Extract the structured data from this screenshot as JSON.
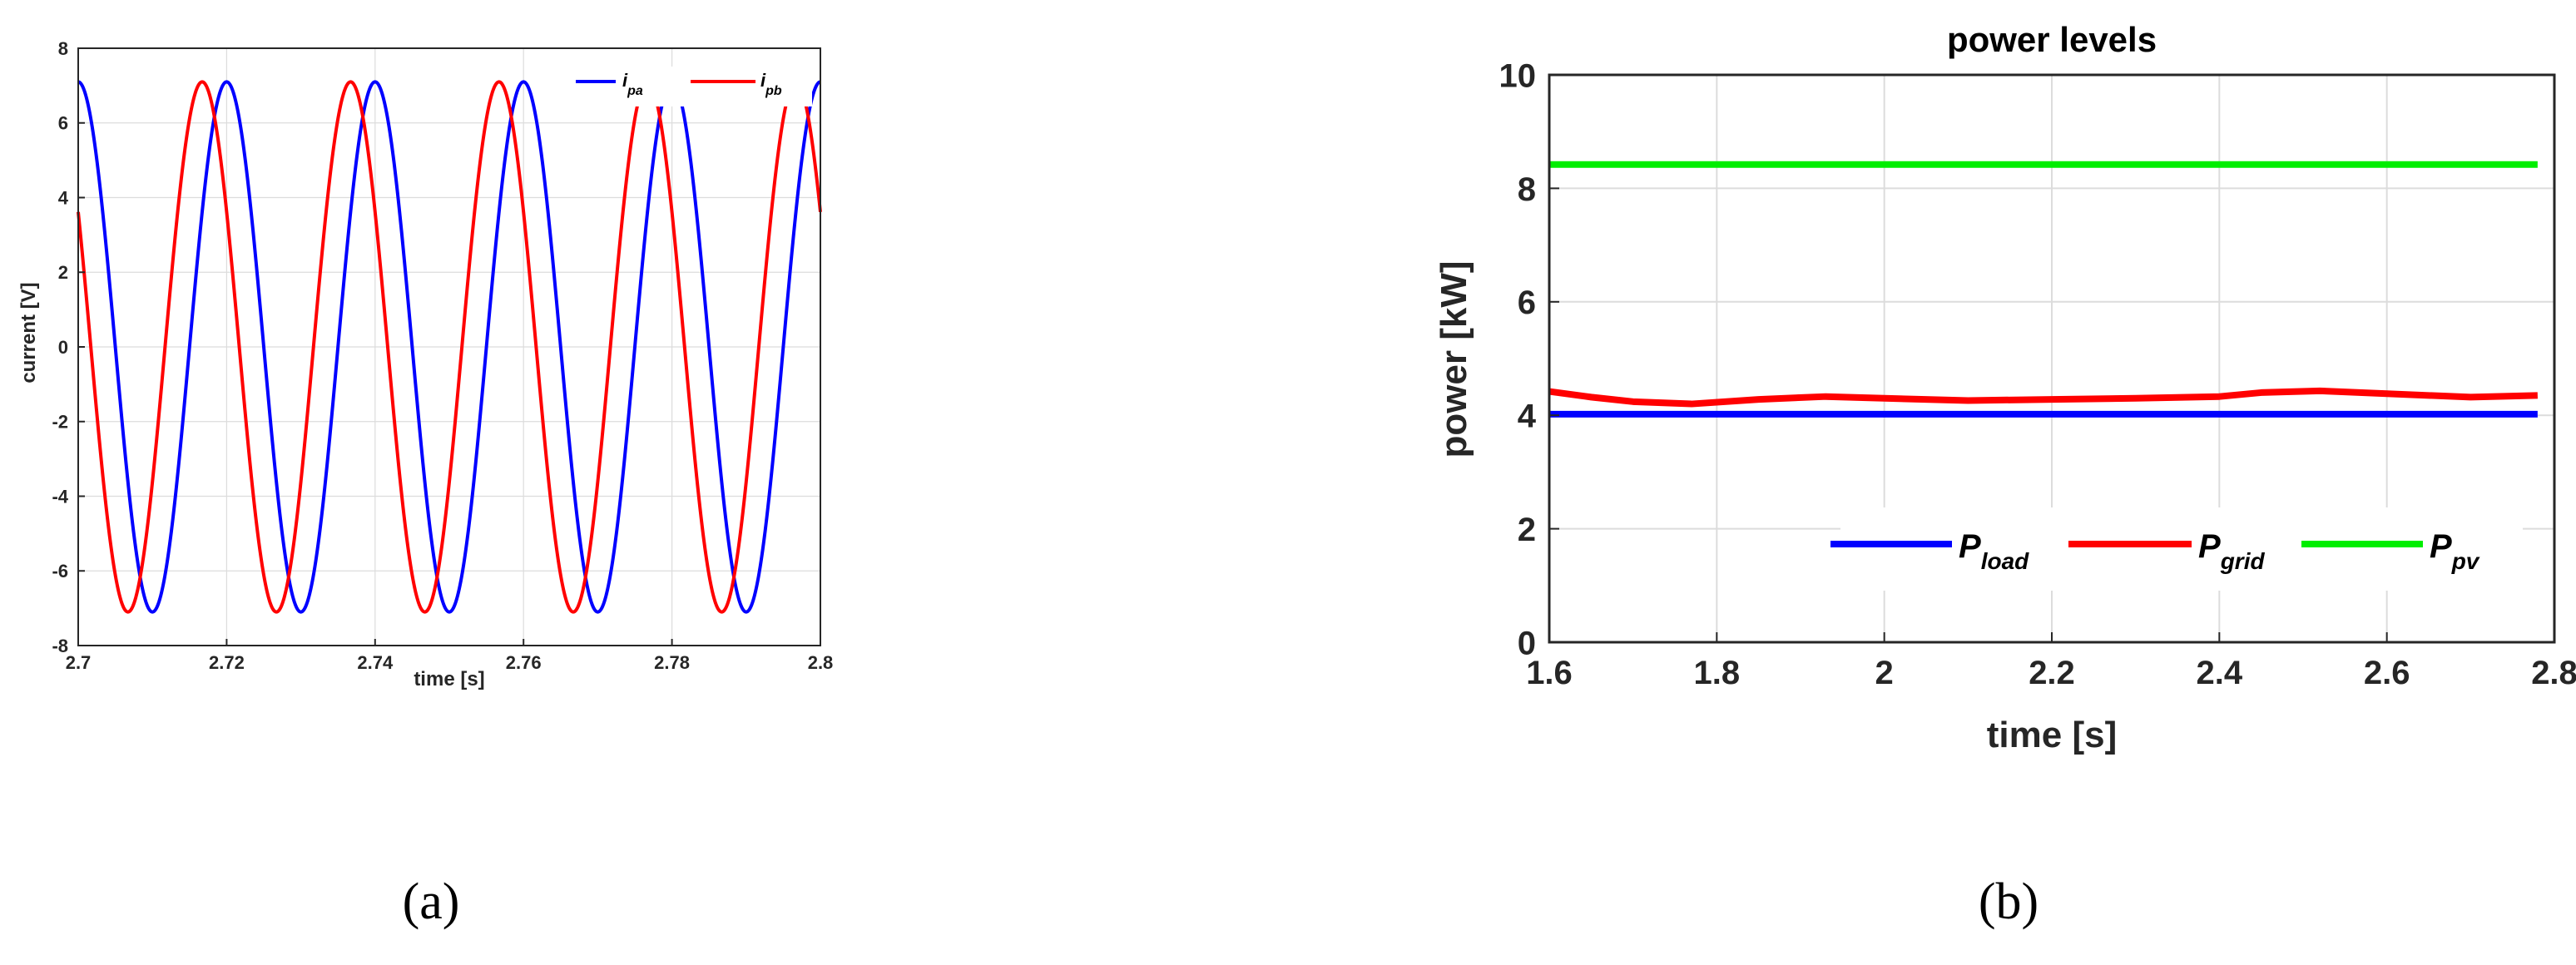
{
  "captions": {
    "a": "(a)",
    "b": "(b)"
  },
  "colors": {
    "blue": "#0000ff",
    "red": "#ff0000",
    "green": "#00ee00",
    "grid": "#dcdcdc",
    "axis": "#262626"
  },
  "chart_data": [
    {
      "type": "line",
      "panel": "a",
      "title": "",
      "xlabel": "time [s]",
      "ylabel": "current [V]",
      "xlim": [
        2.7,
        2.8
      ],
      "ylim": [
        -8,
        8
      ],
      "xticks": [
        2.7,
        2.72,
        2.74,
        2.76,
        2.78,
        2.8
      ],
      "xtick_labels": [
        "2.7",
        "2.72",
        "2.74",
        "2.76",
        "2.78",
        "2.8"
      ],
      "yticks": [
        -8,
        -6,
        -4,
        -2,
        0,
        2,
        4,
        6,
        8
      ],
      "ytick_labels": [
        "-8",
        "-6",
        "-4",
        "-2",
        "0",
        "2",
        "4",
        "6",
        "8"
      ],
      "grid": true,
      "legend_position": "top-right",
      "series": [
        {
          "name": "i",
          "subscript": "pa",
          "color": "#0000ff",
          "amplitude": 7.1,
          "frequency_hz": 50,
          "peak_times": [
            2.7,
            2.72,
            2.74,
            2.76,
            2.78,
            2.8
          ]
        },
        {
          "name": "i",
          "subscript": "pb",
          "color": "#ff0000",
          "amplitude": 7.1,
          "frequency_hz": 50,
          "peak_times": [
            2.6967,
            2.7167,
            2.7367,
            2.7567,
            2.7767,
            2.7967
          ]
        }
      ]
    },
    {
      "type": "line",
      "panel": "b",
      "title": "power levels",
      "xlabel": "time [s]",
      "ylabel": "power [kW]",
      "xlim": [
        1.6,
        2.8
      ],
      "ylim": [
        0,
        10
      ],
      "xticks": [
        1.6,
        1.8,
        2.0,
        2.2,
        2.4,
        2.6,
        2.8
      ],
      "xtick_labels": [
        "1.6",
        "1.8",
        "2",
        "2.2",
        "2.4",
        "2.6",
        "2.8"
      ],
      "yticks": [
        0,
        2,
        4,
        6,
        8,
        10
      ],
      "ytick_labels": [
        "0",
        "2",
        "4",
        "6",
        "8",
        "10"
      ],
      "grid": true,
      "legend_position": "bottom-right",
      "x": [
        1.6,
        1.65,
        1.7,
        1.77,
        1.85,
        1.93,
        2.0,
        2.1,
        2.2,
        2.3,
        2.4,
        2.45,
        2.52,
        2.6,
        2.7,
        2.78
      ],
      "series": [
        {
          "name": "P",
          "subscript": "load",
          "color": "#0000ff",
          "values": [
            4.02,
            4.02,
            4.02,
            4.02,
            4.02,
            4.02,
            4.02,
            4.02,
            4.02,
            4.02,
            4.02,
            4.02,
            4.02,
            4.02,
            4.02,
            4.02
          ]
        },
        {
          "name": "P",
          "subscript": "grid",
          "color": "#ff0000",
          "values": [
            4.42,
            4.32,
            4.24,
            4.2,
            4.28,
            4.33,
            4.3,
            4.26,
            4.28,
            4.3,
            4.33,
            4.4,
            4.43,
            4.38,
            4.32,
            4.35
          ]
        },
        {
          "name": "P",
          "subscript": "pv",
          "color": "#00ee00",
          "values": [
            8.42,
            8.42,
            8.42,
            8.42,
            8.42,
            8.42,
            8.42,
            8.42,
            8.42,
            8.42,
            8.42,
            8.42,
            8.42,
            8.42,
            8.42,
            8.42
          ]
        }
      ]
    }
  ]
}
